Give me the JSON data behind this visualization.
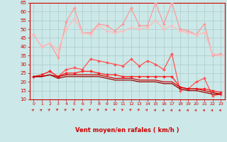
{
  "x": [
    0,
    1,
    2,
    3,
    4,
    5,
    6,
    7,
    8,
    9,
    10,
    11,
    12,
    13,
    14,
    15,
    16,
    17,
    18,
    19,
    20,
    21,
    22,
    23
  ],
  "series": [
    {
      "name": "rafales_max",
      "color": "#ff9999",
      "alpha": 1.0,
      "linewidth": 0.9,
      "marker": "D",
      "markersize": 2.0,
      "values": [
        47,
        40,
        42,
        34,
        54,
        62,
        48,
        48,
        53,
        52,
        49,
        53,
        62,
        52,
        52,
        65,
        53,
        65,
        50,
        49,
        47,
        53,
        35,
        36
      ]
    },
    {
      "name": "rafales_moy",
      "color": "#ffbbbb",
      "alpha": 1.0,
      "linewidth": 0.9,
      "marker": "D",
      "markersize": 2.0,
      "values": [
        47,
        40,
        42,
        38,
        50,
        56,
        48,
        47,
        52,
        49,
        48,
        49,
        51,
        50,
        51,
        55,
        50,
        52,
        49,
        48,
        47,
        48,
        36,
        35
      ]
    },
    {
      "name": "vent_rafales",
      "color": "#ff5555",
      "alpha": 1.0,
      "linewidth": 0.9,
      "marker": "D",
      "markersize": 2.0,
      "values": [
        23,
        24,
        26,
        23,
        27,
        28,
        27,
        33,
        32,
        31,
        30,
        29,
        33,
        29,
        32,
        30,
        27,
        36,
        15,
        16,
        20,
        22,
        12,
        13
      ]
    },
    {
      "name": "vent_moy_upper",
      "color": "#ff2222",
      "alpha": 1.0,
      "linewidth": 0.9,
      "marker": "D",
      "markersize": 2.0,
      "values": [
        23,
        24,
        26,
        23,
        25,
        25,
        26,
        26,
        25,
        24,
        24,
        23,
        23,
        23,
        23,
        23,
        23,
        23,
        17,
        16,
        16,
        16,
        15,
        14
      ]
    },
    {
      "name": "vent_moy_mid",
      "color": "#cc0000",
      "alpha": 1.0,
      "linewidth": 0.9,
      "marker": null,
      "markersize": 0,
      "values": [
        23,
        23,
        24,
        23,
        24,
        24,
        24,
        24,
        24,
        23,
        22,
        22,
        22,
        21,
        21,
        21,
        20,
        20,
        17,
        16,
        16,
        15,
        14,
        13
      ]
    },
    {
      "name": "vent_moy_low",
      "color": "#990000",
      "alpha": 1.0,
      "linewidth": 0.9,
      "marker": null,
      "markersize": 0,
      "values": [
        23,
        23,
        24,
        22,
        23,
        23,
        23,
        23,
        23,
        22,
        21,
        21,
        21,
        20,
        20,
        20,
        19,
        19,
        16,
        15,
        15,
        14,
        13,
        13
      ]
    }
  ],
  "wind_dirs": [
    45,
    45,
    60,
    70,
    60,
    70,
    60,
    60,
    60,
    60,
    60,
    60,
    60,
    60,
    45,
    30,
    20,
    20,
    20,
    20,
    20,
    20,
    20,
    20
  ],
  "ylim": [
    10,
    65
  ],
  "yticks": [
    10,
    15,
    20,
    25,
    30,
    35,
    40,
    45,
    50,
    55,
    60,
    65
  ],
  "xlim": [
    -0.5,
    23.5
  ],
  "xticks": [
    0,
    1,
    2,
    3,
    4,
    5,
    6,
    7,
    8,
    9,
    10,
    11,
    12,
    13,
    14,
    15,
    16,
    17,
    18,
    19,
    20,
    21,
    22,
    23
  ],
  "xlabel": "Vent moyen/en rafales ( km/h )",
  "bg_color": "#cce8e8",
  "grid_color": "#aacccc",
  "tick_color": "#cc0000",
  "label_color": "#cc0000",
  "arrow_color": "#cc0000"
}
